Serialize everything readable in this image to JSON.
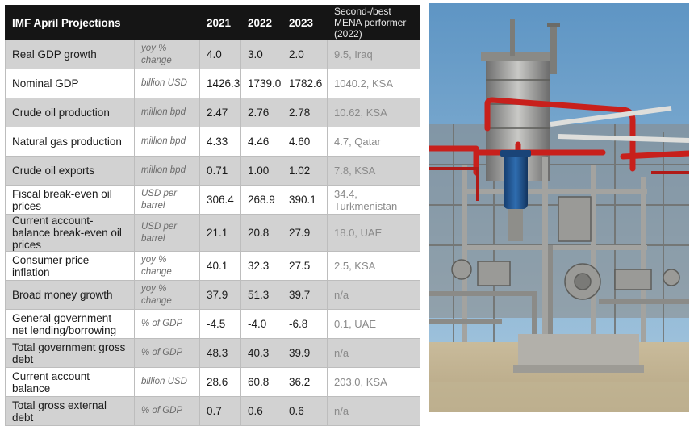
{
  "table": {
    "title": "IMF April Projections",
    "years": [
      "2021",
      "2022",
      "2023"
    ],
    "note_header": "Second-/best MENA performer (2022)",
    "rows": [
      {
        "indicator": "Real GDP growth",
        "unit": "yoy % change",
        "v2021": "4.0",
        "v2022": "3.0",
        "v2023": "2.0",
        "best": "9.5, Iraq"
      },
      {
        "indicator": "Nominal GDP",
        "unit": "billion USD",
        "v2021": "1426.3",
        "v2022": "1739.0",
        "v2023": "1782.6",
        "best": "1040.2, KSA"
      },
      {
        "indicator": "Crude oil production",
        "unit": "million bpd",
        "v2021": "2.47",
        "v2022": "2.76",
        "v2023": "2.78",
        "best": "10.62, KSA"
      },
      {
        "indicator": "Natural gas production",
        "unit": "million bpd",
        "v2021": "4.33",
        "v2022": "4.46",
        "v2023": "4.60",
        "best": "4.7, Qatar"
      },
      {
        "indicator": "Crude oil exports",
        "unit": "million bpd",
        "v2021": "0.71",
        "v2022": "1.00",
        "v2023": "1.02",
        "best": "7.8, KSA"
      },
      {
        "indicator": "Fiscal break-even oil prices",
        "unit": "USD per barrel",
        "v2021": "306.4",
        "v2022": "268.9",
        "v2023": "390.1",
        "best": "34.4, Turkmenistan"
      },
      {
        "indicator": "Current account-balance break-even oil prices",
        "unit": "USD per barrel",
        "v2021": "21.1",
        "v2022": "20.8",
        "v2023": "27.9",
        "best": "18.0, UAE"
      },
      {
        "indicator": "Consumer price inflation",
        "unit": "yoy % change",
        "v2021": "40.1",
        "v2022": "32.3",
        "v2023": "27.5",
        "best": "2.5, KSA"
      },
      {
        "indicator": "Broad money growth",
        "unit": "yoy % change",
        "v2021": "37.9",
        "v2022": "51.3",
        "v2023": "39.7",
        "best": "n/a"
      },
      {
        "indicator": "General government net lending/borrowing",
        "unit": "% of GDP",
        "v2021": "-4.5",
        "v2022": "-4.0",
        "v2023": "-6.8",
        "best": "0.1, UAE"
      },
      {
        "indicator": "Total government gross debt",
        "unit": "% of GDP",
        "v2021": "48.3",
        "v2022": "40.3",
        "v2023": "39.9",
        "best": "n/a"
      },
      {
        "indicator": "Current account balance",
        "unit": "billion USD",
        "v2021": "28.6",
        "v2022": "60.8",
        "v2023": "36.2",
        "best": "203.0, KSA"
      },
      {
        "indicator": "Total gross external debt",
        "unit": "% of GDP",
        "v2021": "0.7",
        "v2022": "0.6",
        "v2023": "0.6",
        "best": "n/a"
      }
    ]
  },
  "photo": {
    "subject": "oil-gas-processing-plant",
    "colors": {
      "sky": "#6da3cc",
      "pipe_red": "#c8201c",
      "pump_blue": "#1d4f8c",
      "steel": "#9a9a98",
      "ground": "#cdbf9f"
    }
  }
}
